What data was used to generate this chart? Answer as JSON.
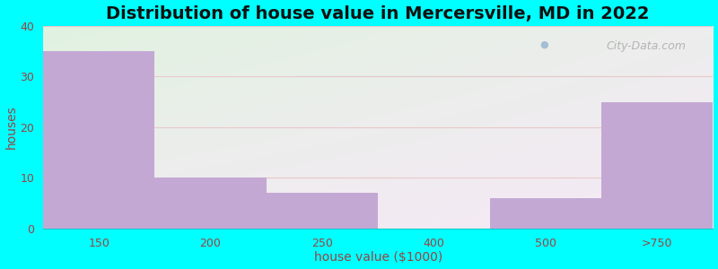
{
  "title": "Distribution of house value in Mercersville, MD in 2022",
  "xlabel": "house value ($1000)",
  "ylabel": "houses",
  "categories": [
    "150",
    "200",
    "250",
    "400",
    "500",
    ">750"
  ],
  "values": [
    35,
    10,
    7,
    0,
    6,
    25
  ],
  "bar_color": "#C4A8D4",
  "ylim": [
    0,
    40
  ],
  "yticks": [
    0,
    10,
    20,
    30,
    40
  ],
  "bg_color": "#00FFFF",
  "grid_color": "#e8c8c8",
  "title_fontsize": 14,
  "axis_label_fontsize": 10,
  "tick_fontsize": 9,
  "tick_color": "#994444",
  "watermark": "City-Data.com"
}
